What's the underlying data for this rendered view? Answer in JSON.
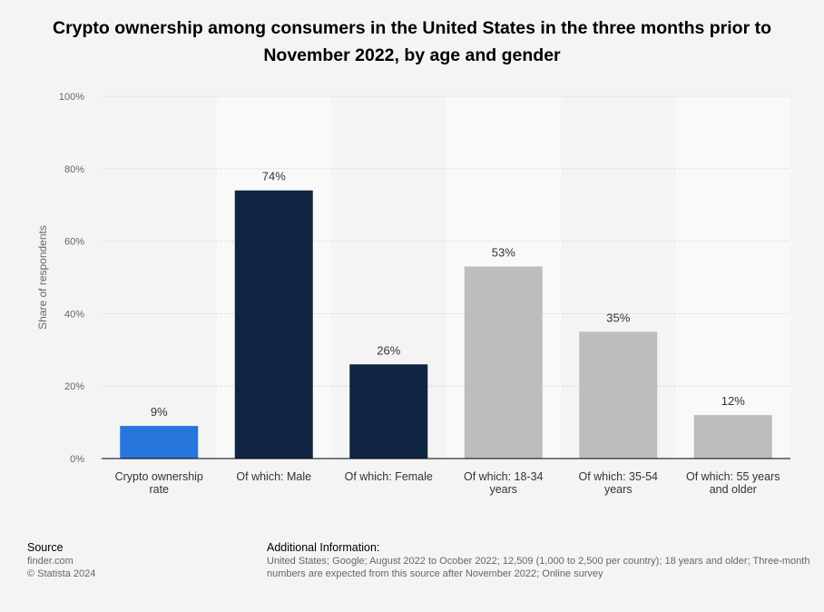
{
  "chart_data": {
    "type": "bar",
    "title": "Crypto ownership among consumers in the United States in the three months prior to November 2022, by age and gender",
    "ylabel": "Share of respondents",
    "ylim": [
      0,
      100
    ],
    "yticks": [
      "0%",
      "20%",
      "40%",
      "60%",
      "80%",
      "100%"
    ],
    "categories": [
      "Crypto ownership rate",
      "Of which: Male",
      "Of which: Female",
      "Of which: 18-34 years",
      "Of which: 35-54 years",
      "Of which: 55 years and older"
    ],
    "values": [
      9,
      74,
      26,
      53,
      35,
      12
    ],
    "value_labels": [
      "9%",
      "74%",
      "26%",
      "53%",
      "35%",
      "12%"
    ],
    "bar_colors": [
      "#2876dd",
      "#0f2541",
      "#0f2541",
      "#bdbdbd",
      "#bdbdbd",
      "#bdbdbd"
    ],
    "grid": true
  },
  "footer": {
    "source_heading": "Source",
    "source_lines": [
      "finder.com",
      "© Statista 2024"
    ],
    "info_heading": "Additional Information:",
    "info_text": "United States; Google; August 2022 to Ocober 2022; 12,509 (1,000 to 2,500 per country); 18 years and older; Three-month numbers are expected from this source after November 2022; Online survey"
  }
}
